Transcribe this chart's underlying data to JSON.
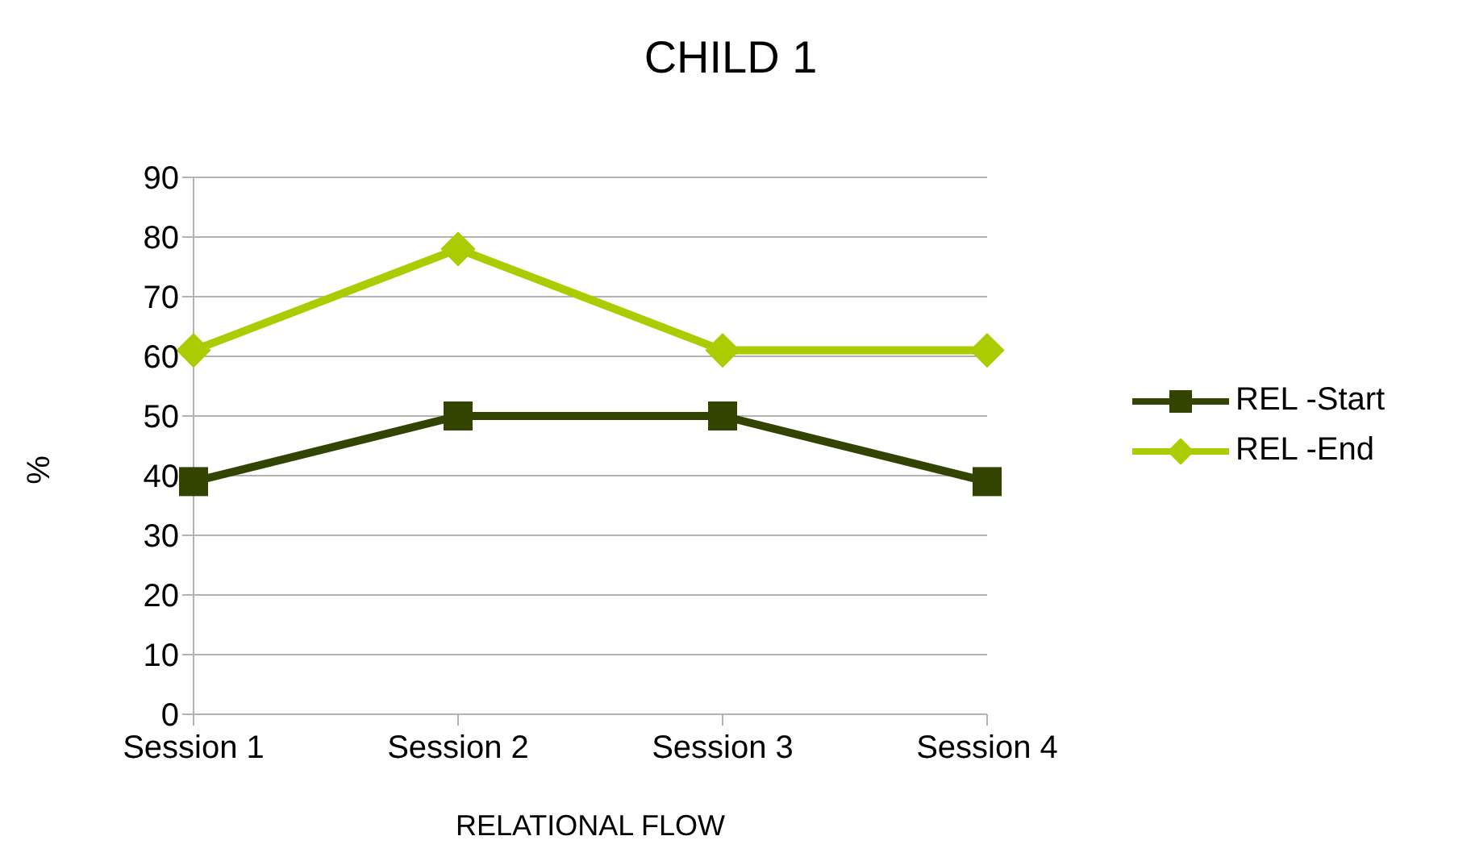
{
  "chart_data": {
    "type": "line",
    "title": "CHILD 1",
    "xlabel": "RELATIONAL FLOW",
    "ylabel": "%",
    "categories": [
      "Session 1",
      "Session 2",
      "Session 3",
      "Session 4"
    ],
    "series": [
      {
        "name": "REL -Start",
        "color": "#334400",
        "values": [
          39,
          50,
          50,
          39
        ],
        "marker": "square"
      },
      {
        "name": "REL -End",
        "color": "#aacc00",
        "values": [
          61,
          78,
          61,
          61
        ],
        "marker": "diamond"
      }
    ],
    "ylim": [
      0,
      90
    ],
    "yticks": [
      0,
      10,
      20,
      30,
      40,
      50,
      60,
      70,
      80,
      90
    ],
    "grid": "y",
    "legend": "right",
    "line_style": "solid"
  }
}
